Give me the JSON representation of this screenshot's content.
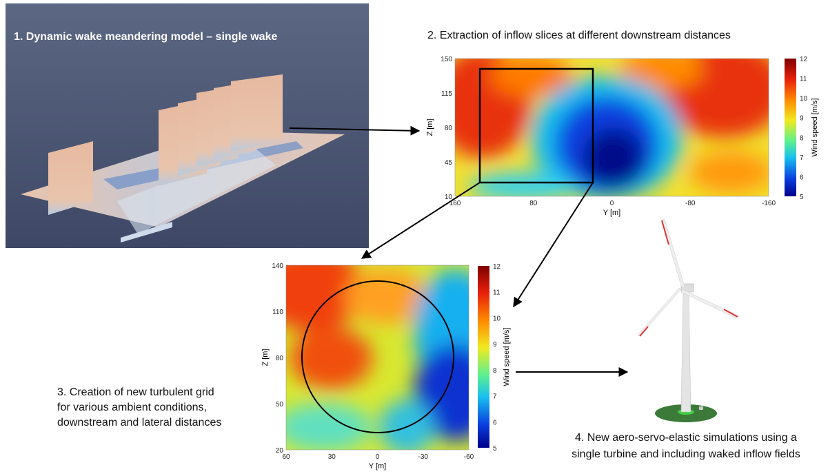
{
  "steps": [
    {
      "label": "1. Dynamic wake meandering model – single wake"
    },
    {
      "label": "2. Extraction of inflow slices at different downstream distances"
    },
    {
      "lines": [
        "3. Creation of new turbulent grid",
        "for various ambient conditions,",
        "downstream and lateral distances"
      ]
    },
    {
      "lines": [
        "4. New aero-servo-elastic simulations using a",
        "single turbine and including waked inflow fields"
      ]
    }
  ],
  "plots": [
    {
      "x_label": "Y [m]",
      "y_label": "Z [m]",
      "colorbar_label": "Wind speed [m/s]",
      "x_ticks": [
        "160",
        "80",
        "0",
        "-80",
        "-160"
      ],
      "y_ticks": [
        "150",
        "115",
        "80",
        "45",
        "10"
      ],
      "colorbar_ticks": [
        "12",
        "11",
        "10",
        "9",
        "8",
        "7",
        "6",
        "5"
      ]
    },
    {
      "x_label": "Y [m]",
      "y_label": "Z [m]",
      "colorbar_label": "Wind speed [m/s]",
      "x_ticks": [
        "60",
        "30",
        "0",
        "-30",
        "-60"
      ],
      "y_ticks": [
        "140",
        "110",
        "80",
        "50",
        "20"
      ],
      "colorbar_ticks": [
        "12",
        "11",
        "10",
        "9",
        "8",
        "7",
        "6",
        "5"
      ]
    }
  ]
}
